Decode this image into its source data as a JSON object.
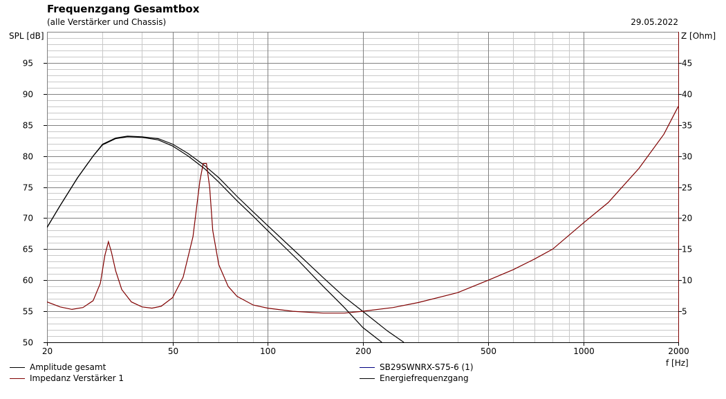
{
  "header": {
    "title": "Frequenzgang Gesamtbox",
    "subtitle": "(alle Verstärker und Chassis)",
    "date": "29.05.2022"
  },
  "axes": {
    "y_left_label": "SPL [dB]",
    "y_right_label": "Z [Ohm]",
    "x_label": "f [Hz]",
    "x_ticks": [
      "20",
      "50",
      "100",
      "200",
      "500",
      "1000",
      "2000"
    ],
    "y_left_ticks": [
      "95",
      "90",
      "85",
      "80",
      "75",
      "70",
      "65",
      "60",
      "55",
      "50"
    ],
    "y_right_ticks": [
      "45",
      "40",
      "35",
      "30",
      "25",
      "20",
      "15",
      "10",
      "5"
    ]
  },
  "legend": [
    {
      "label": "Amplitude gesamt",
      "color": "#000000"
    },
    {
      "label": "Impedanz Verstärker 1",
      "color": "#800000"
    },
    {
      "label": "SB29SWNRX-S75-6 (1)",
      "color": "#000080"
    },
    {
      "label": "Energiefrequenzgang",
      "color": "#000000"
    }
  ],
  "colors": {
    "grid_major": "#808080",
    "grid_minor": "#c8c8c8",
    "impedance": "#800000",
    "amplitude": "#000000"
  },
  "chart_data": {
    "type": "line",
    "title": "Frequenzgang Gesamtbox",
    "subtitle": "(alle Verstärker und Chassis)",
    "xlabel": "f [Hz]",
    "ylabel": "SPL [dB]",
    "y2label": "Z [Ohm]",
    "xscale": "log",
    "xlim": [
      20,
      2000
    ],
    "ylim": [
      50,
      100
    ],
    "y2lim": [
      0,
      50
    ],
    "grid": true,
    "legend_position": "bottom",
    "series": [
      {
        "name": "Amplitude gesamt",
        "axis": "left",
        "x": [
          20,
          22,
          25,
          28,
          30,
          33,
          36,
          40,
          45,
          50,
          56,
          63,
          70,
          80,
          90,
          100,
          125,
          150,
          175,
          200,
          230
        ],
        "y": [
          68.5,
          72.0,
          76.5,
          80.0,
          81.8,
          82.8,
          83.1,
          83.0,
          82.6,
          81.6,
          80.0,
          78.0,
          75.8,
          72.8,
          70.3,
          68.0,
          63.2,
          59.0,
          55.6,
          52.4,
          50.0
        ]
      },
      {
        "name": "Energiefrequenzgang",
        "axis": "left",
        "x": [
          20,
          22,
          25,
          28,
          30,
          33,
          36,
          40,
          45,
          50,
          56,
          63,
          70,
          80,
          90,
          100,
          125,
          150,
          175,
          200,
          240,
          270
        ],
        "y": [
          68.5,
          72.0,
          76.5,
          80.0,
          81.9,
          82.9,
          83.2,
          83.1,
          82.8,
          81.9,
          80.4,
          78.5,
          76.5,
          73.5,
          71.0,
          68.8,
          64.2,
          60.4,
          57.3,
          55.0,
          51.8,
          50.0
        ]
      },
      {
        "name": "SB29SWNRX-S75-6 (1)",
        "axis": "left",
        "x": [],
        "y": []
      },
      {
        "name": "Impedanz Verstärker 1",
        "axis": "right",
        "x": [
          20,
          22,
          24,
          26,
          28,
          29.5,
          30.5,
          31.3,
          32,
          33,
          34.5,
          37,
          40,
          43,
          46,
          50,
          54,
          58,
          61,
          62.5,
          64,
          65.5,
          67,
          70,
          75,
          80,
          90,
          100,
          120,
          150,
          175,
          200,
          250,
          300,
          400,
          500,
          600,
          700,
          800,
          1000,
          1200,
          1500,
          1800,
          2000
        ],
        "y": [
          6.5,
          5.7,
          5.3,
          5.6,
          6.7,
          9.5,
          14.0,
          16.2,
          14.5,
          11.5,
          8.5,
          6.5,
          5.7,
          5.5,
          5.8,
          7.2,
          10.5,
          17.0,
          26.0,
          28.8,
          28.8,
          25.0,
          18.0,
          12.5,
          9.0,
          7.4,
          6.0,
          5.5,
          5.0,
          4.7,
          4.7,
          5.0,
          5.6,
          6.4,
          8.0,
          10.0,
          11.7,
          13.4,
          15.0,
          19.2,
          22.5,
          28.0,
          33.5,
          38.0
        ]
      }
    ]
  }
}
